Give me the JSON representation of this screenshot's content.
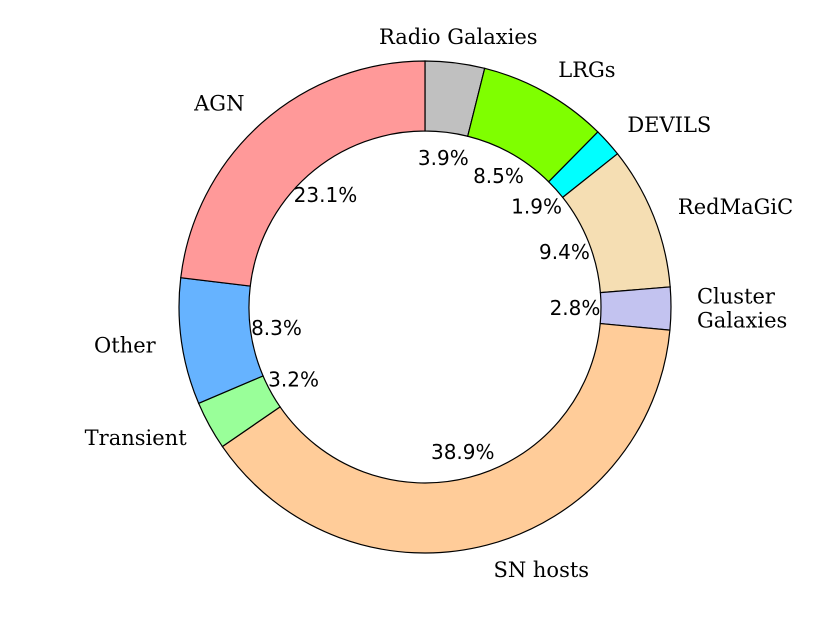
{
  "chart_data": {
    "type": "pie",
    "variant": "donut",
    "title": "",
    "slices": [
      {
        "label": "Radio Galaxies",
        "lines": [
          "Radio Galaxies"
        ],
        "value": 3.9,
        "pct_label": "3.9%",
        "color": "#c0c0c0"
      },
      {
        "label": "LRGs",
        "lines": [
          "LRGs"
        ],
        "value": 8.5,
        "pct_label": "8.5%",
        "color": "#7fff00"
      },
      {
        "label": "DEVILS",
        "lines": [
          "DEVILS"
        ],
        "value": 1.9,
        "pct_label": "1.9%",
        "color": "#00ffff"
      },
      {
        "label": "RedMaGiC",
        "lines": [
          "RedMaGiC"
        ],
        "value": 9.4,
        "pct_label": "9.4%",
        "color": "#f5deb3"
      },
      {
        "label": "Cluster Galaxies",
        "lines": [
          "Cluster",
          "Galaxies"
        ],
        "value": 2.8,
        "pct_label": "2.8%",
        "color": "#c3c3f0"
      },
      {
        "label": "SN hosts",
        "lines": [
          "SN hosts"
        ],
        "value": 38.9,
        "pct_label": "38.9%",
        "color": "#ffcc99"
      },
      {
        "label": "Transient",
        "lines": [
          "Transient"
        ],
        "value": 3.2,
        "pct_label": "3.2%",
        "color": "#99ff99"
      },
      {
        "label": "Other",
        "lines": [
          "Other"
        ],
        "value": 8.3,
        "pct_label": "8.3%",
        "color": "#66b3ff"
      },
      {
        "label": "AGN",
        "lines": [
          "AGN"
        ],
        "value": 23.1,
        "pct_label": "23.1%",
        "color": "#ff9999"
      }
    ],
    "start": "top",
    "direction": "clockwise",
    "legend": "none"
  }
}
